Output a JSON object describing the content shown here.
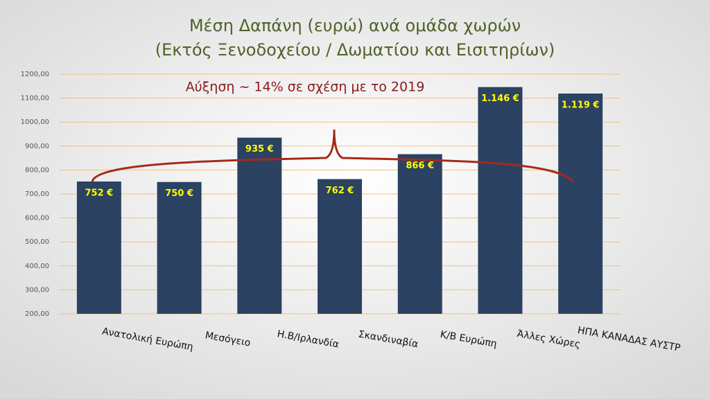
{
  "chart_data": {
    "type": "bar",
    "title": "Μέση Δαπάνη (ευρώ) ανά ομάδα χωρών",
    "subtitle": "(Εκτός Ξενοδοχείου / Δωματίου και Εισιτηρίων)",
    "annotation": "Αύξηση ~ 14% σε σχέση με το 2019",
    "categories": [
      "Ανατολική Ευρώπη",
      "Μεσόγειο",
      "Η.Β/Ιρλανδία",
      "Σκανδιναβία",
      "Κ/Β Ευρώπη",
      "Άλλες Χώρες",
      "ΗΠΑ ΚΑΝΑΔΑΣ ΑΥΣΤΡ"
    ],
    "values": [
      752,
      750,
      935,
      762,
      866,
      1146,
      1119
    ],
    "value_labels": [
      "752 €",
      "750 €",
      "935 €",
      "762 €",
      "866 €",
      "1.146 €",
      "1.119 €"
    ],
    "color": "#2c4262",
    "ylim": [
      200,
      1200
    ],
    "yticks": [
      {
        "value": 200,
        "label": "200,00"
      },
      {
        "value": 300,
        "label": "300,00"
      },
      {
        "value": 400,
        "label": "400,00"
      },
      {
        "value": 500,
        "label": "500,00"
      },
      {
        "value": 600,
        "label": "600,00"
      },
      {
        "value": 700,
        "label": "700,00"
      },
      {
        "value": 800,
        "label": "800,00"
      },
      {
        "value": 900,
        "label": "900,00"
      },
      {
        "value": 1000,
        "label": "1000,00"
      },
      {
        "value": 1100,
        "label": "1100,00"
      },
      {
        "value": 1200,
        "label": "1200,00"
      }
    ],
    "grid": true
  }
}
